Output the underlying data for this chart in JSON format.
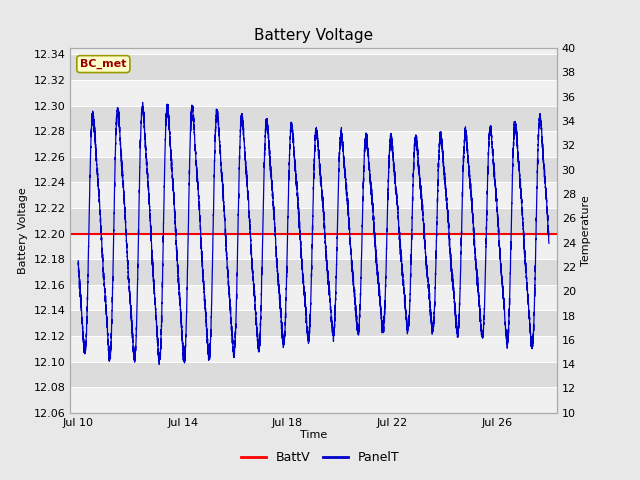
{
  "title": "Battery Voltage",
  "xlabel": "Time",
  "ylabel_left": "Battery Voltage",
  "ylabel_right": "Temperature",
  "xlim_start": 9.7,
  "xlim_end": 28.3,
  "ylim_left": [
    12.06,
    12.345
  ],
  "ylim_right": [
    10,
    40
  ],
  "x_ticks": [
    10,
    14,
    18,
    22,
    26
  ],
  "x_tick_labels": [
    "Jul 10",
    "Jul 14",
    "Jul 18",
    "Jul 22",
    "Jul 26"
  ],
  "y_ticks_left": [
    12.06,
    12.08,
    12.1,
    12.12,
    12.14,
    12.16,
    12.18,
    12.2,
    12.22,
    12.24,
    12.26,
    12.28,
    12.3,
    12.32,
    12.34
  ],
  "y_ticks_right": [
    10,
    12,
    14,
    16,
    18,
    20,
    22,
    24,
    26,
    28,
    30,
    32,
    34,
    36,
    38,
    40
  ],
  "battv_value": 12.2,
  "battv_color": "#ff0000",
  "panelt_color": "#0000cc",
  "bg_color": "#e8e8e8",
  "plot_bg_light": "#f0f0f0",
  "plot_bg_dark": "#dcdcdc",
  "grid_color": "#ffffff",
  "annotation_text": "BC_met",
  "annotation_bg": "#ffffcc",
  "annotation_border": "#999900",
  "annotation_text_color": "#990000",
  "legend_battv": "BattV",
  "legend_panelt": "PanelT",
  "title_fontsize": 11,
  "label_fontsize": 8,
  "tick_fontsize": 8
}
